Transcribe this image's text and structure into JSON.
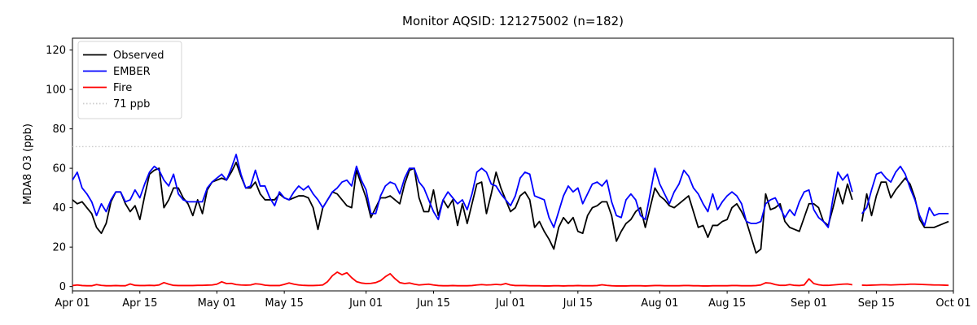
{
  "chart_data": {
    "type": "line",
    "title": "Monitor AQSID: 121275002 (n=182)",
    "ylabel": "MDA8 O3 (ppb)",
    "xlabel": "",
    "grid": false,
    "legend_position": "upper left",
    "ylim": [
      -2.2,
      126
    ],
    "xlim_days": [
      0,
      183
    ],
    "y_ticks": [
      0,
      20,
      40,
      60,
      80,
      100,
      120
    ],
    "x_ticks": [
      {
        "day": 0,
        "label": "Apr 01"
      },
      {
        "day": 14,
        "label": "Apr 15"
      },
      {
        "day": 30,
        "label": "May 01"
      },
      {
        "day": 44,
        "label": "May 15"
      },
      {
        "day": 61,
        "label": "Jun 01"
      },
      {
        "day": 75,
        "label": "Jun 15"
      },
      {
        "day": 91,
        "label": "Jul 01"
      },
      {
        "day": 105,
        "label": "Jul 15"
      },
      {
        "day": 122,
        "label": "Aug 01"
      },
      {
        "day": 136,
        "label": "Aug 15"
      },
      {
        "day": 153,
        "label": "Sep 01"
      },
      {
        "day": 167,
        "label": "Sep 15"
      },
      {
        "day": 183,
        "label": "Oct 01"
      }
    ],
    "threshold": {
      "value": 71,
      "label": "71 ppb",
      "color": "#cccccc",
      "dash": "dotted"
    },
    "legend": [
      {
        "label": "Observed",
        "color": "#000000",
        "dash": "solid"
      },
      {
        "label": "EMBER",
        "color": "#0000ff",
        "dash": "solid"
      },
      {
        "label": "Fire",
        "color": "#ff0000",
        "dash": "solid"
      },
      {
        "label": "71 ppb",
        "color": "#cccccc",
        "dash": "dotted"
      }
    ],
    "series": [
      {
        "name": "Observed",
        "color": "#000000",
        "values": [
          44,
          42,
          43,
          40,
          37,
          30,
          27,
          32,
          43,
          48,
          48,
          42,
          38,
          41,
          34,
          46,
          57,
          59,
          60,
          40,
          44,
          50,
          50,
          45,
          42,
          36,
          44,
          37,
          49,
          53,
          54,
          55,
          54,
          58,
          63,
          56,
          50,
          50,
          53,
          47,
          44,
          44,
          44,
          47,
          45,
          44,
          45,
          46,
          46,
          45,
          40,
          29,
          40,
          44,
          48,
          47,
          44,
          41,
          40,
          59,
          52,
          45,
          35,
          40,
          45,
          45,
          46,
          44,
          42,
          52,
          59,
          60,
          45,
          38,
          38,
          49,
          36,
          44,
          40,
          44,
          31,
          42,
          32,
          42,
          52,
          53,
          37,
          47,
          58,
          50,
          44,
          38,
          40,
          46,
          48,
          44,
          30,
          33,
          28,
          24,
          19,
          30,
          35,
          32,
          35,
          28,
          27,
          36,
          40,
          41,
          43,
          43,
          36,
          23,
          28,
          32,
          34,
          38,
          40,
          30,
          40,
          50,
          46,
          44,
          41,
          40,
          42,
          44,
          46,
          38,
          30,
          31,
          25,
          31,
          31,
          33,
          34,
          40,
          42,
          38,
          33,
          25,
          17,
          19,
          47,
          39,
          40,
          42,
          33,
          30,
          29,
          28,
          35,
          42,
          42,
          40,
          33,
          31,
          40,
          50,
          42,
          52,
          44,
          null,
          33,
          47,
          36,
          46,
          53,
          53,
          45,
          49,
          52,
          55,
          52,
          45,
          34,
          30,
          30,
          30,
          31,
          32,
          33
        ]
      },
      {
        "name": "EMBER",
        "color": "#0000ff",
        "values": [
          54,
          58,
          50,
          47,
          43,
          36,
          42,
          38,
          44,
          48,
          48,
          43,
          44,
          49,
          45,
          52,
          58,
          61,
          59,
          54,
          51,
          57,
          47,
          44,
          43,
          43,
          43,
          43,
          50,
          53,
          55,
          57,
          54,
          60,
          67,
          57,
          50,
          51,
          59,
          51,
          51,
          45,
          41,
          48,
          45,
          44,
          48,
          51,
          49,
          51,
          47,
          44,
          40,
          44,
          48,
          50,
          53,
          54,
          51,
          61,
          54,
          49,
          37,
          37,
          46,
          51,
          53,
          52,
          47,
          55,
          60,
          60,
          53,
          50,
          44,
          38,
          34,
          44,
          48,
          45,
          42,
          44,
          39,
          47,
          58,
          60,
          58,
          52,
          51,
          47,
          44,
          41,
          46,
          55,
          58,
          57,
          46,
          45,
          44,
          35,
          30,
          38,
          46,
          51,
          48,
          50,
          42,
          47,
          52,
          53,
          51,
          54,
          43,
          36,
          35,
          44,
          47,
          44,
          36,
          34,
          47,
          60,
          52,
          47,
          42,
          48,
          52,
          59,
          56,
          50,
          47,
          42,
          38,
          47,
          39,
          43,
          46,
          48,
          46,
          42,
          33,
          32,
          32,
          33,
          42,
          44,
          45,
          40,
          35,
          39,
          36,
          43,
          48,
          49,
          39,
          35,
          33,
          30,
          45,
          58,
          54,
          57,
          48,
          null,
          37,
          40,
          49,
          57,
          58,
          55,
          53,
          58,
          61,
          57,
          50,
          44,
          36,
          31,
          40,
          36,
          37,
          37,
          37
        ]
      },
      {
        "name": "Fire",
        "color": "#ff0000",
        "values": [
          0.5,
          0.8,
          0.5,
          0.4,
          0.4,
          1.0,
          0.6,
          0.4,
          0.4,
          0.5,
          0.4,
          0.4,
          1.3,
          0.6,
          0.5,
          0.5,
          0.6,
          0.5,
          0.8,
          2.0,
          1.2,
          0.6,
          0.5,
          0.5,
          0.5,
          0.5,
          0.6,
          0.6,
          0.7,
          0.8,
          1.2,
          2.4,
          1.5,
          1.6,
          1.0,
          0.8,
          0.7,
          0.8,
          1.4,
          1.2,
          0.7,
          0.5,
          0.5,
          0.5,
          1.1,
          1.8,
          1.2,
          0.8,
          0.6,
          0.5,
          0.5,
          0.6,
          0.8,
          2.5,
          5.5,
          7.3,
          6.0,
          7.0,
          4.5,
          2.5,
          1.8,
          1.5,
          1.6,
          2.0,
          3.0,
          5.0,
          6.5,
          4.0,
          2.0,
          1.5,
          1.8,
          1.2,
          0.8,
          1.0,
          1.2,
          0.8,
          0.5,
          0.4,
          0.4,
          0.5,
          0.4,
          0.4,
          0.4,
          0.5,
          0.8,
          1.0,
          0.8,
          0.9,
          1.1,
          0.9,
          1.5,
          0.8,
          0.5,
          0.5,
          0.5,
          0.4,
          0.4,
          0.4,
          0.3,
          0.3,
          0.4,
          0.4,
          0.3,
          0.4,
          0.4,
          0.5,
          0.4,
          0.4,
          0.4,
          0.5,
          0.9,
          0.6,
          0.4,
          0.3,
          0.3,
          0.3,
          0.4,
          0.4,
          0.4,
          0.3,
          0.4,
          0.5,
          0.5,
          0.4,
          0.4,
          0.4,
          0.4,
          0.5,
          0.5,
          0.4,
          0.4,
          0.3,
          0.3,
          0.4,
          0.4,
          0.4,
          0.4,
          0.5,
          0.5,
          0.4,
          0.4,
          0.4,
          0.5,
          0.8,
          1.9,
          1.7,
          1.0,
          0.6,
          0.6,
          1.0,
          0.6,
          0.5,
          0.8,
          3.9,
          1.5,
          0.9,
          0.6,
          0.6,
          0.8,
          1.0,
          1.2,
          1.3,
          0.9,
          null,
          0.7,
          0.6,
          0.7,
          0.8,
          0.9,
          0.9,
          0.8,
          0.9,
          1.0,
          1.0,
          1.2,
          1.2,
          1.1,
          1.0,
          0.9,
          0.8,
          0.8,
          0.7,
          0.6
        ]
      }
    ]
  }
}
